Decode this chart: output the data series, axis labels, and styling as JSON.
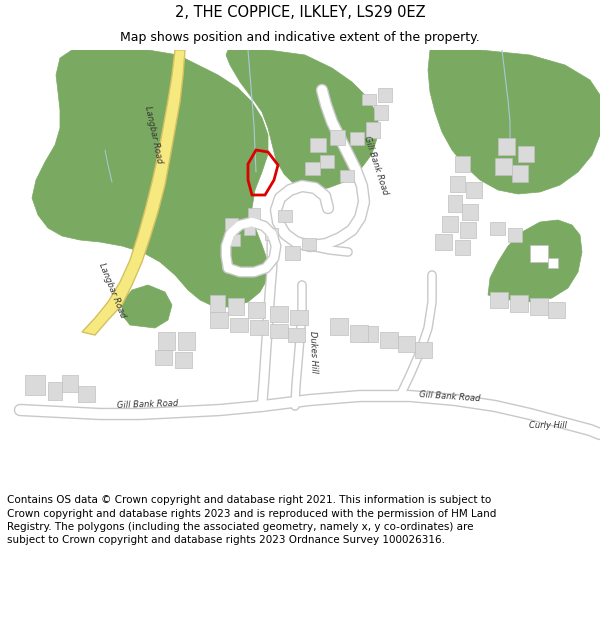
{
  "title_line1": "2, THE COPPICE, ILKLEY, LS29 0EZ",
  "title_line2": "Map shows position and indicative extent of the property.",
  "footer_text": "Contains OS data © Crown copyright and database right 2021. This information is subject to Crown copyright and database rights 2023 and is reproduced with the permission of HM Land Registry. The polygons (including the associated geometry, namely x, y co-ordinates) are subject to Crown copyright and database rights 2023 Ordnance Survey 100026316.",
  "bg_color": "#ffffff",
  "map_bg": "#f8f8f8",
  "road_color": "#ffffff",
  "road_outline": "#c8c8c8",
  "building_color": "#dadada",
  "building_outline": "#c0c0c0",
  "green_color": "#7aaa62",
  "road_major_fill": "#f5e980",
  "road_major_outline": "#d4c060",
  "highlight_color": "#dd0000",
  "water_line_color": "#aac8d8",
  "title_fontsize": 10.5,
  "subtitle_fontsize": 9.0,
  "footer_fontsize": 7.5
}
